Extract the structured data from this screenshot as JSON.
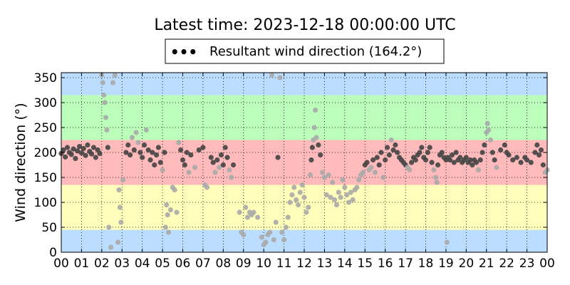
{
  "chart_data": {
    "type": "scatter",
    "title": "Latest time: 2023-12-18 00:00:00 UTC",
    "ylabel": "Wind direction (°)",
    "xlabel": "",
    "legend": {
      "label": "Resultant wind direction (164.2°)",
      "position": "top-center",
      "marker": "•••"
    },
    "xlim": [
      0,
      24
    ],
    "ylim": [
      0,
      360
    ],
    "x_unit": "hour",
    "grid": true,
    "grid_style": "dotted",
    "xticks": [
      0,
      1,
      2,
      3,
      4,
      5,
      6,
      7,
      8,
      9,
      10,
      11,
      12,
      13,
      14,
      15,
      16,
      17,
      18,
      19,
      20,
      21,
      22,
      23,
      24
    ],
    "xtick_labels": [
      "00",
      "01",
      "02",
      "03",
      "04",
      "05",
      "06",
      "07",
      "08",
      "09",
      "10",
      "11",
      "12",
      "13",
      "14",
      "15",
      "16",
      "17",
      "18",
      "19",
      "20",
      "21",
      "22",
      "23",
      "00"
    ],
    "yticks": [
      0,
      50,
      100,
      150,
      200,
      250,
      300,
      350
    ],
    "ytick_labels": [
      "0",
      "50",
      "100",
      "150",
      "200",
      "250",
      "300",
      "350"
    ],
    "bands": [
      {
        "from": 0,
        "to": 45,
        "color": "#bbddff"
      },
      {
        "from": 45,
        "to": 135,
        "color": "#ffffbb"
      },
      {
        "from": 135,
        "to": 225,
        "color": "#ffbbbb"
      },
      {
        "from": 225,
        "to": 315,
        "color": "#bbffbb"
      },
      {
        "from": 315,
        "to": 360,
        "color": "#bbddff"
      }
    ],
    "series": [
      {
        "color_dark": "#444444",
        "color_light": "#aaaaaa",
        "points": [
          [
            0.0,
            198
          ],
          [
            0.1,
            205
          ],
          [
            0.2,
            191
          ],
          [
            0.3,
            210
          ],
          [
            0.4,
            200
          ],
          [
            0.5,
            196
          ],
          [
            0.6,
            207
          ],
          [
            0.7,
            188
          ],
          [
            0.8,
            203
          ],
          [
            0.9,
            212
          ],
          [
            1.0,
            199
          ],
          [
            1.1,
            208
          ],
          [
            1.2,
            194
          ],
          [
            1.3,
            215
          ],
          [
            1.4,
            202
          ],
          [
            1.5,
            197
          ],
          [
            1.6,
            210
          ],
          [
            1.7,
            190
          ],
          [
            1.8,
            205
          ],
          [
            1.9,
            198
          ],
          [
            2.0,
            355
          ],
          [
            2.05,
            340
          ],
          [
            2.1,
            315
          ],
          [
            2.15,
            300
          ],
          [
            2.2,
            270
          ],
          [
            2.25,
            245
          ],
          [
            2.3,
            210
          ],
          [
            2.35,
            50
          ],
          [
            2.45,
            10
          ],
          [
            2.55,
            340
          ],
          [
            2.65,
            355
          ],
          [
            2.8,
            20
          ],
          [
            2.85,
            125
          ],
          [
            2.9,
            90
          ],
          [
            2.95,
            60
          ],
          [
            3.05,
            145
          ],
          [
            3.2,
            200
          ],
          [
            3.3,
            215
          ],
          [
            3.4,
            195
          ],
          [
            3.5,
            230
          ],
          [
            3.6,
            205
          ],
          [
            3.7,
            240
          ],
          [
            3.8,
            220
          ],
          [
            3.9,
            200
          ],
          [
            4.0,
            190
          ],
          [
            4.1,
            215
          ],
          [
            4.2,
            245
          ],
          [
            4.3,
            205
          ],
          [
            4.4,
            185
          ],
          [
            4.5,
            200
          ],
          [
            4.6,
            175
          ],
          [
            4.7,
            195
          ],
          [
            4.8,
            210
          ],
          [
            4.9,
            180
          ],
          [
            5.0,
            165
          ],
          [
            5.1,
            200
          ],
          [
            5.15,
            50
          ],
          [
            5.2,
            95
          ],
          [
            5.25,
            75
          ],
          [
            5.3,
            40
          ],
          [
            5.4,
            85
          ],
          [
            5.5,
            130
          ],
          [
            5.6,
            125
          ],
          [
            5.7,
            80
          ],
          [
            5.8,
            220
          ],
          [
            5.9,
            205
          ],
          [
            6.0,
            185
          ],
          [
            6.1,
            175
          ],
          [
            6.2,
            200
          ],
          [
            6.3,
            160
          ],
          [
            6.4,
            195
          ],
          [
            6.6,
            170
          ],
          [
            6.8,
            205
          ],
          [
            7.0,
            210
          ],
          [
            7.1,
            135
          ],
          [
            7.2,
            130
          ],
          [
            7.4,
            190
          ],
          [
            7.5,
            180
          ],
          [
            7.6,
            160
          ],
          [
            7.7,
            185
          ],
          [
            7.8,
            170
          ],
          [
            7.9,
            195
          ],
          [
            8.0,
            175
          ],
          [
            8.1,
            210
          ],
          [
            8.2,
            190
          ],
          [
            8.3,
            165
          ],
          [
            8.4,
            150
          ],
          [
            8.5,
            175
          ],
          [
            8.8,
            80
          ],
          [
            8.9,
            40
          ],
          [
            9.0,
            35
          ],
          [
            9.1,
            90
          ],
          [
            9.2,
            70
          ],
          [
            9.3,
            80
          ],
          [
            9.4,
            75
          ],
          [
            9.5,
            80
          ],
          [
            9.7,
            70
          ],
          [
            9.9,
            30
          ],
          [
            10.0,
            15
          ],
          [
            10.1,
            20
          ],
          [
            10.2,
            35
          ],
          [
            10.3,
            40
          ],
          [
            10.4,
            355
          ],
          [
            10.5,
            25
          ],
          [
            10.6,
            60
          ],
          [
            10.7,
            190
          ],
          [
            10.8,
            350
          ],
          [
            10.9,
            40
          ],
          [
            11.0,
            25
          ],
          [
            11.1,
            50
          ],
          [
            11.2,
            70
          ],
          [
            11.3,
            100
          ],
          [
            11.4,
            115
          ],
          [
            11.5,
            130
          ],
          [
            11.6,
            105
          ],
          [
            11.7,
            95
          ],
          [
            11.8,
            120
          ],
          [
            11.9,
            135
          ],
          [
            12.0,
            110
          ],
          [
            12.1,
            80
          ],
          [
            12.2,
            90
          ],
          [
            12.3,
            155
          ],
          [
            12.35,
            185
          ],
          [
            12.4,
            210
          ],
          [
            12.45,
            225
          ],
          [
            12.5,
            250
          ],
          [
            12.55,
            285
          ],
          [
            12.6,
            230
          ],
          [
            12.7,
            215
          ],
          [
            12.8,
            195
          ],
          [
            12.9,
            160
          ],
          [
            13.0,
            150
          ],
          [
            13.1,
            115
          ],
          [
            13.2,
            155
          ],
          [
            13.3,
            110
          ],
          [
            13.4,
            140
          ],
          [
            13.5,
            105
          ],
          [
            13.6,
            95
          ],
          [
            13.7,
            120
          ],
          [
            13.8,
            110
          ],
          [
            13.9,
            145
          ],
          [
            14.0,
            130
          ],
          [
            14.1,
            115
          ],
          [
            14.2,
            100
          ],
          [
            14.3,
            120
          ],
          [
            14.4,
            105
          ],
          [
            14.5,
            125
          ],
          [
            14.6,
            130
          ],
          [
            14.7,
            145
          ],
          [
            14.8,
            155
          ],
          [
            14.9,
            160
          ],
          [
            15.0,
            175
          ],
          [
            15.1,
            180
          ],
          [
            15.2,
            165
          ],
          [
            15.3,
            170
          ],
          [
            15.4,
            185
          ],
          [
            15.5,
            160
          ],
          [
            15.6,
            190
          ],
          [
            15.7,
            175
          ],
          [
            15.8,
            200
          ],
          [
            15.9,
            150
          ],
          [
            16.0,
            185
          ],
          [
            16.1,
            210
          ],
          [
            16.2,
            195
          ],
          [
            16.3,
            225
          ],
          [
            16.4,
            205
          ],
          [
            16.5,
            215
          ],
          [
            16.6,
            200
          ],
          [
            16.7,
            190
          ],
          [
            16.8,
            185
          ],
          [
            16.9,
            180
          ],
          [
            17.0,
            175
          ],
          [
            17.1,
            170
          ],
          [
            17.2,
            165
          ],
          [
            17.3,
            180
          ],
          [
            17.4,
            190
          ],
          [
            17.5,
            185
          ],
          [
            17.6,
            195
          ],
          [
            17.7,
            200
          ],
          [
            17.8,
            210
          ],
          [
            17.9,
            190
          ],
          [
            18.0,
            185
          ],
          [
            18.1,
            200
          ],
          [
            18.2,
            210
          ],
          [
            18.3,
            180
          ],
          [
            18.4,
            165
          ],
          [
            18.5,
            150
          ],
          [
            18.55,
            140
          ],
          [
            18.6,
            175
          ],
          [
            18.7,
            195
          ],
          [
            18.8,
            200
          ],
          [
            18.9,
            190
          ],
          [
            19.0,
            185
          ],
          [
            19.05,
            20
          ],
          [
            19.1,
            190
          ],
          [
            19.2,
            185
          ],
          [
            19.3,
            195
          ],
          [
            19.4,
            180
          ],
          [
            19.5,
            200
          ],
          [
            19.6,
            185
          ],
          [
            19.7,
            190
          ],
          [
            19.8,
            180
          ],
          [
            19.9,
            185
          ],
          [
            20.0,
            190
          ],
          [
            20.1,
            180
          ],
          [
            20.2,
            185
          ],
          [
            20.3,
            175
          ],
          [
            20.4,
            185
          ],
          [
            20.5,
            180
          ],
          [
            20.6,
            165
          ],
          [
            20.7,
            185
          ],
          [
            20.8,
            200
          ],
          [
            20.9,
            215
          ],
          [
            21.0,
            240
          ],
          [
            21.05,
            258
          ],
          [
            21.1,
            245
          ],
          [
            21.2,
            225
          ],
          [
            21.3,
            200
          ],
          [
            21.4,
            185
          ],
          [
            21.5,
            170
          ],
          [
            21.7,
            205
          ],
          [
            21.9,
            215
          ],
          [
            22.0,
            200
          ],
          [
            22.1,
            195
          ],
          [
            22.3,
            185
          ],
          [
            22.5,
            190
          ],
          [
            22.7,
            180
          ],
          [
            22.9,
            190
          ],
          [
            23.0,
            185
          ],
          [
            23.2,
            180
          ],
          [
            23.4,
            200
          ],
          [
            23.5,
            215
          ],
          [
            23.6,
            195
          ],
          [
            23.7,
            205
          ],
          [
            23.8,
            175
          ],
          [
            23.9,
            160
          ],
          [
            24.0,
            165
          ]
        ]
      }
    ]
  }
}
